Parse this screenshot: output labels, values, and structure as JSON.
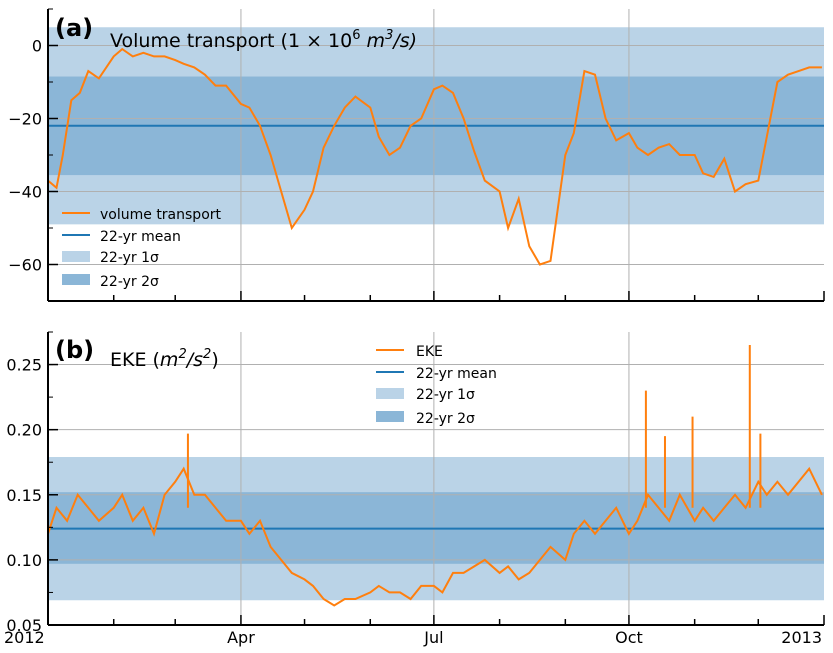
{
  "colors": {
    "series": "#ff7f0e",
    "mean": "#1f77b4",
    "band1": "#bad3e7",
    "band2": "#8bb6d7",
    "grid": "#b0b0b0"
  },
  "chart_data": [
    {
      "panel": "(a)",
      "type": "line",
      "title_main": "Volume transport (1 × 10",
      "title_exp1": "6",
      "title_unit": " m",
      "title_exp2": "3",
      "title_end": "/s)",
      "ylim": [
        -70,
        10
      ],
      "yticks": [
        0,
        -20,
        -40,
        -60
      ],
      "ytick_labels": [
        "0",
        "−20",
        "−40",
        "−60"
      ],
      "legend_position": "lower-left",
      "legend": [
        "volume transport",
        "22-yr mean",
        "22-yr 1σ",
        "22-yr 2σ"
      ],
      "mean": -22,
      "band_1sigma": [
        -35.5,
        -8.5
      ],
      "band_2sigma": [
        -49,
        5
      ],
      "series": [
        {
          "name": "volume transport",
          "x": [
            "2012-01-01",
            "2012-01-05",
            "2012-01-08",
            "2012-01-12",
            "2012-01-16",
            "2012-01-20",
            "2012-01-25",
            "2012-02-01",
            "2012-02-05",
            "2012-02-10",
            "2012-02-15",
            "2012-02-20",
            "2012-02-25",
            "2012-03-01",
            "2012-03-05",
            "2012-03-10",
            "2012-03-15",
            "2012-03-20",
            "2012-03-25",
            "2012-04-01",
            "2012-04-05",
            "2012-04-10",
            "2012-04-15",
            "2012-04-20",
            "2012-04-25",
            "2012-05-01",
            "2012-05-05",
            "2012-05-10",
            "2012-05-15",
            "2012-05-20",
            "2012-05-25",
            "2012-06-01",
            "2012-06-05",
            "2012-06-10",
            "2012-06-15",
            "2012-06-20",
            "2012-06-25",
            "2012-07-01",
            "2012-07-05",
            "2012-07-10",
            "2012-07-15",
            "2012-07-20",
            "2012-07-25",
            "2012-08-01",
            "2012-08-05",
            "2012-08-10",
            "2012-08-15",
            "2012-08-20",
            "2012-08-25",
            "2012-09-01",
            "2012-09-05",
            "2012-09-10",
            "2012-09-15",
            "2012-09-20",
            "2012-09-25",
            "2012-10-01",
            "2012-10-05",
            "2012-10-10",
            "2012-10-15",
            "2012-10-20",
            "2012-10-25",
            "2012-11-01",
            "2012-11-05",
            "2012-11-10",
            "2012-11-15",
            "2012-11-20",
            "2012-11-25",
            "2012-12-01",
            "2012-12-05",
            "2012-12-10",
            "2012-12-15",
            "2012-12-20",
            "2012-12-25",
            "2012-12-31"
          ],
          "y": [
            -37,
            -39,
            -30,
            -15,
            -13,
            -7,
            -9,
            -3,
            -1,
            -3,
            -2,
            -3,
            -3,
            -4,
            -5,
            -6,
            -8,
            -11,
            -11,
            -16,
            -17,
            -22,
            -30,
            -40,
            -50,
            -45,
            -40,
            -28,
            -22,
            -17,
            -14,
            -17,
            -25,
            -30,
            -28,
            -22,
            -20,
            -12,
            -11,
            -13,
            -20,
            -29,
            -37,
            -40,
            -50,
            -42,
            -55,
            -60,
            -59,
            -30,
            -24,
            -7,
            -8,
            -20,
            -26,
            -24,
            -28,
            -30,
            -28,
            -27,
            -30,
            -30,
            -35,
            -36,
            -31,
            -40,
            -38,
            -37,
            -25,
            -10,
            -8,
            -7,
            -6,
            -6
          ]
        }
      ]
    },
    {
      "panel": "(b)",
      "type": "line",
      "title_main": "EKE (",
      "title_unit": "m",
      "title_exp1": "2",
      "title_mid": "/s",
      "title_exp2": "2",
      "title_end": ")",
      "ylim": [
        0.05,
        0.275
      ],
      "yticks": [
        0.05,
        0.1,
        0.15,
        0.2,
        0.25
      ],
      "ytick_labels": [
        "0.05",
        "0.10",
        "0.15",
        "0.20",
        "0.25"
      ],
      "x_axis_labels": [
        "2012",
        "Apr",
        "Jul",
        "Oct",
        "2013"
      ],
      "legend_position": "upper-center",
      "legend": [
        "EKE",
        "22-yr mean",
        "22-yr 1σ",
        "22-yr 2σ"
      ],
      "mean": 0.124,
      "band_1sigma": [
        0.097,
        0.152
      ],
      "band_2sigma": [
        0.069,
        0.179
      ],
      "series": [
        {
          "name": "EKE",
          "x": [
            "2012-01-01",
            "2012-01-05",
            "2012-01-10",
            "2012-01-15",
            "2012-01-20",
            "2012-01-25",
            "2012-02-01",
            "2012-02-05",
            "2012-02-10",
            "2012-02-15",
            "2012-02-20",
            "2012-02-25",
            "2012-03-01",
            "2012-03-05",
            "2012-03-10",
            "2012-03-15",
            "2012-03-20",
            "2012-03-25",
            "2012-04-01",
            "2012-04-05",
            "2012-04-10",
            "2012-04-15",
            "2012-04-20",
            "2012-04-25",
            "2012-05-01",
            "2012-05-05",
            "2012-05-10",
            "2012-05-15",
            "2012-05-20",
            "2012-05-25",
            "2012-06-01",
            "2012-06-05",
            "2012-06-10",
            "2012-06-15",
            "2012-06-20",
            "2012-06-25",
            "2012-07-01",
            "2012-07-05",
            "2012-07-10",
            "2012-07-15",
            "2012-07-20",
            "2012-07-25",
            "2012-08-01",
            "2012-08-05",
            "2012-08-10",
            "2012-08-15",
            "2012-08-20",
            "2012-08-25",
            "2012-09-01",
            "2012-09-05",
            "2012-09-10",
            "2012-09-15",
            "2012-09-20",
            "2012-09-25",
            "2012-10-01",
            "2012-10-05",
            "2012-10-10",
            "2012-10-15",
            "2012-10-20",
            "2012-10-25",
            "2012-11-01",
            "2012-11-05",
            "2012-11-10",
            "2012-11-15",
            "2012-11-20",
            "2012-11-25",
            "2012-12-01",
            "2012-12-05",
            "2012-12-10",
            "2012-12-15",
            "2012-12-20",
            "2012-12-25",
            "2012-12-31"
          ],
          "y": [
            0.12,
            0.14,
            0.13,
            0.15,
            0.14,
            0.13,
            0.14,
            0.15,
            0.13,
            0.14,
            0.12,
            0.15,
            0.16,
            0.17,
            0.15,
            0.15,
            0.14,
            0.13,
            0.13,
            0.12,
            0.13,
            0.11,
            0.1,
            0.09,
            0.085,
            0.08,
            0.07,
            0.065,
            0.07,
            0.07,
            0.075,
            0.08,
            0.075,
            0.075,
            0.07,
            0.08,
            0.08,
            0.075,
            0.09,
            0.09,
            0.095,
            0.1,
            0.09,
            0.095,
            0.085,
            0.09,
            0.1,
            0.11,
            0.1,
            0.12,
            0.13,
            0.12,
            0.13,
            0.14,
            0.12,
            0.13,
            0.15,
            0.14,
            0.13,
            0.15,
            0.13,
            0.14,
            0.13,
            0.14,
            0.15,
            0.14,
            0.16,
            0.15,
            0.16,
            0.15,
            0.16,
            0.17,
            0.15
          ]
        },
        {
          "name": "EKE spikes",
          "x": [
            "2012-03-07",
            "2012-10-09",
            "2012-10-18",
            "2012-10-31",
            "2012-11-27",
            "2012-12-02"
          ],
          "y": [
            0.197,
            0.23,
            0.195,
            0.21,
            0.265,
            0.197
          ]
        }
      ]
    }
  ]
}
